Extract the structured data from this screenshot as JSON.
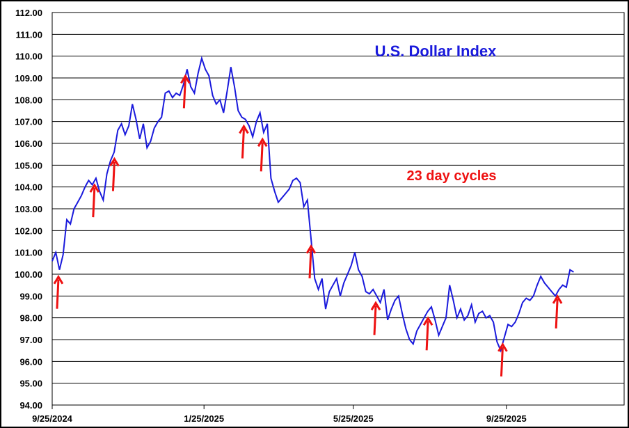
{
  "chart_data": {
    "type": "line",
    "title": "U.S. Dollar Index",
    "annotation": "23 day cycles",
    "xlabel": "",
    "ylabel": "",
    "ylim": [
      94.0,
      112.0
    ],
    "y_ticks": [
      "94.00",
      "95.00",
      "96.00",
      "97.00",
      "98.00",
      "99.00",
      "100.00",
      "101.00",
      "102.00",
      "103.00",
      "104.00",
      "105.00",
      "106.00",
      "107.00",
      "108.00",
      "109.00",
      "110.00",
      "111.00",
      "112.00"
    ],
    "x_ticks": [
      "9/25/2024",
      "1/25/2025",
      "5/25/2025",
      "9/25/2025"
    ],
    "grid": true,
    "colors": {
      "series": "#1a1adc",
      "arrows": "#ee1111",
      "grid": "#000000"
    },
    "series": [
      {
        "values": [
          100.6,
          101.0,
          100.2,
          100.9,
          102.5,
          102.3,
          103.0,
          103.3,
          103.6,
          104.0,
          104.3,
          104.1,
          104.4,
          103.8,
          103.4,
          104.6,
          105.2,
          105.6,
          106.6,
          106.9,
          106.4,
          106.8,
          107.8,
          107.1,
          106.2,
          106.9,
          105.8,
          106.1,
          106.7,
          107.0,
          107.2,
          108.3,
          108.4,
          108.1,
          108.3,
          108.2,
          108.7,
          109.4,
          108.6,
          108.3,
          109.2,
          109.9,
          109.4,
          109.1,
          108.2,
          107.8,
          108.0,
          107.4,
          108.4,
          109.5,
          108.6,
          107.5,
          107.2,
          107.1,
          106.8,
          106.3,
          107.0,
          107.4,
          106.5,
          106.9,
          104.4,
          103.8,
          103.3,
          103.5,
          103.7,
          103.9,
          104.3,
          104.4,
          104.2,
          103.1,
          103.4,
          101.6,
          99.8,
          99.3,
          99.8,
          98.4,
          99.2,
          99.5,
          99.8,
          99.0,
          99.6,
          100.0,
          100.4,
          101.0,
          100.2,
          99.9,
          99.2,
          99.1,
          99.3,
          99.0,
          98.7,
          99.3,
          97.9,
          98.4,
          98.8,
          99.0,
          98.2,
          97.5,
          97.0,
          96.8,
          97.4,
          97.7,
          98.0,
          98.3,
          98.5,
          97.9,
          97.2,
          97.6,
          98.0,
          99.5,
          98.8,
          98.0,
          98.4,
          97.9,
          98.1,
          98.6,
          97.8,
          98.2,
          98.3,
          98.0,
          98.1,
          97.8,
          96.9,
          96.5,
          97.1,
          97.7,
          97.6,
          97.8,
          98.2,
          98.7,
          98.9,
          98.8,
          99.0,
          99.5,
          99.9,
          99.6,
          99.4,
          99.2,
          99.0,
          99.3,
          99.5,
          99.4,
          100.2,
          100.1
        ]
      }
    ],
    "x_range": [
      "2024-09-25",
      "2025-11-18"
    ],
    "cycle_lows": [
      "2024-09-30",
      "2024-10-29",
      "2024-11-14",
      "2025-01-10",
      "2025-02-26",
      "2025-03-13",
      "2025-04-21",
      "2025-06-12",
      "2025-07-24",
      "2025-09-22",
      "2025-11-05"
    ]
  }
}
